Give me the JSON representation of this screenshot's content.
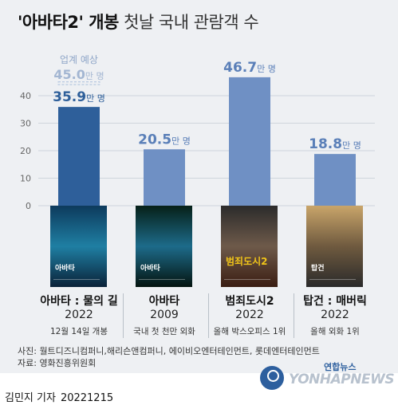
{
  "title": {
    "bold": "'아바타2' 개봉",
    "normal": " 첫날 국내 관람객 수"
  },
  "chart_data": {
    "type": "bar",
    "unit": "만 명",
    "ylim": [
      0,
      50
    ],
    "yticks": [
      0,
      10,
      20,
      30,
      40
    ],
    "grid": true,
    "categories": [
      "아바타 : 물의 길",
      "아바타",
      "범죄도시2",
      "탑건 : 매버릭"
    ],
    "values": [
      35.9,
      20.5,
      46.7,
      18.8
    ],
    "value_labels": [
      "35.9",
      "20.5",
      "46.7",
      "18.8"
    ],
    "bar_colors": [
      "#2e5f9a",
      "#6f90c4",
      "#6f90c4",
      "#6f90c4"
    ],
    "expected": {
      "label": "업계 예상",
      "value": 45.0,
      "value_label": "45.0",
      "unit": "만 명"
    }
  },
  "movies": [
    {
      "name": "아바타 : 물의 길",
      "year": "2022",
      "note": "12월 14일 개봉",
      "poster_text": "아바타",
      "poster_colors": [
        "#0d3a5c",
        "#1f7fa3",
        "#0a2238"
      ]
    },
    {
      "name": "아바타",
      "year": "2009",
      "note": "국내 첫 천만 외화",
      "poster_text": "아바타",
      "poster_colors": [
        "#062018",
        "#1d6b8a",
        "#04140f"
      ]
    },
    {
      "name": "범죄도시2",
      "year": "2022",
      "note": "올해 박스오피스 1위",
      "poster_text": "범죄도시2",
      "poster_colors": [
        "#2b2b2b",
        "#6e5a4a",
        "#3a1d12"
      ]
    },
    {
      "name": "탑건 : 매버릭",
      "year": "2022",
      "note": "올해 외화 1위",
      "poster_text": "탑건",
      "poster_colors": [
        "#c9a56a",
        "#6f5a3f",
        "#2a2a2a"
      ]
    }
  ],
  "sources": {
    "photo": "사진: 월트디즈니컴퍼니,해리슨앤컴퍼니, 에이비오엔터테인먼트, 롯데엔터테인먼트",
    "data": "자료: 영화진흥위원회"
  },
  "footer": {
    "reporter": "김민지 기자",
    "date": "20221215",
    "logo_ko": "연합뉴스",
    "logo_en": "YONHAPNEWS"
  }
}
